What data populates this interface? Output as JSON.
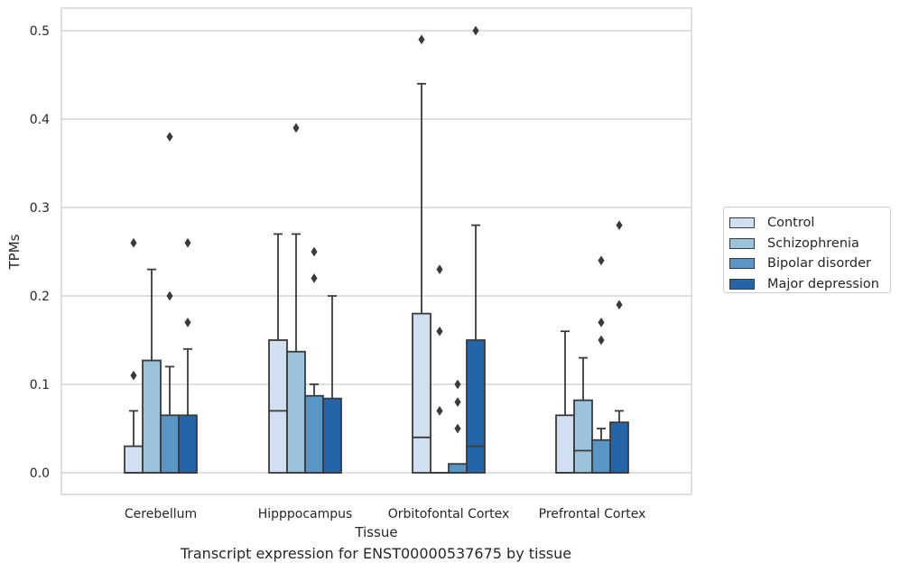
{
  "chart_data": {
    "type": "box",
    "categories": [
      "Cerebellum",
      "Hipppocampus",
      "Orbitofontal Cortex",
      "Prefrontal Cortex"
    ],
    "xlabel": "Tissue",
    "ylabel": "TPMs",
    "ylim": [
      -0.025,
      0.525
    ],
    "yticks": [
      "0.0",
      "0.1",
      "0.2",
      "0.3",
      "0.4",
      "0.5"
    ],
    "grid": true,
    "legend_placement": "right",
    "series": [
      {
        "name": "Control",
        "color": "#d0e0f0",
        "boxes": [
          {
            "whislo": 0.0,
            "q1": 0.0,
            "med": 0.0,
            "q3": 0.03,
            "whishi": 0.07,
            "fliers": [
              0.11,
              0.26
            ]
          },
          {
            "whislo": 0.0,
            "q1": 0.0,
            "med": 0.07,
            "q3": 0.15,
            "whishi": 0.27,
            "fliers": []
          },
          {
            "whislo": 0.0,
            "q1": 0.0,
            "med": 0.04,
            "q3": 0.18,
            "whishi": 0.44,
            "fliers": [
              0.49
            ]
          },
          {
            "whislo": 0.0,
            "q1": 0.0,
            "med": 0.0,
            "q3": 0.065,
            "whishi": 0.16,
            "fliers": []
          }
        ]
      },
      {
        "name": "Schizophrenia",
        "color": "#9bc3db",
        "boxes": [
          {
            "whislo": 0.0,
            "q1": 0.0,
            "med": 0.0,
            "q3": 0.127,
            "whishi": 0.23,
            "fliers": []
          },
          {
            "whislo": 0.0,
            "q1": 0.0,
            "med": 0.0,
            "q3": 0.137,
            "whishi": 0.27,
            "fliers": [
              0.39
            ]
          },
          {
            "whislo": 0.0,
            "q1": 0.0,
            "med": 0.0,
            "q3": 0.0,
            "whishi": 0.0,
            "fliers": [
              0.07,
              0.16,
              0.23
            ]
          },
          {
            "whislo": 0.0,
            "q1": 0.0,
            "med": 0.025,
            "q3": 0.082,
            "whishi": 0.13,
            "fliers": []
          }
        ]
      },
      {
        "name": "Bipolar disorder",
        "color": "#5a96c5",
        "boxes": [
          {
            "whislo": 0.0,
            "q1": 0.0,
            "med": 0.0,
            "q3": 0.065,
            "whishi": 0.12,
            "fliers": [
              0.2,
              0.38
            ]
          },
          {
            "whislo": 0.0,
            "q1": 0.0,
            "med": 0.0,
            "q3": 0.087,
            "whishi": 0.1,
            "fliers": [
              0.22,
              0.25
            ]
          },
          {
            "whislo": 0.0,
            "q1": 0.0,
            "med": 0.0,
            "q3": 0.01,
            "whishi": 0.01,
            "fliers": [
              0.05,
              0.08,
              0.1
            ]
          },
          {
            "whislo": 0.0,
            "q1": 0.0,
            "med": 0.0,
            "q3": 0.037,
            "whishi": 0.05,
            "fliers": [
              0.15,
              0.17,
              0.24
            ]
          }
        ]
      },
      {
        "name": "Major depression",
        "color": "#2465a8",
        "boxes": [
          {
            "whislo": 0.0,
            "q1": 0.0,
            "med": 0.0,
            "q3": 0.065,
            "whishi": 0.14,
            "fliers": [
              0.17,
              0.26
            ]
          },
          {
            "whislo": 0.0,
            "q1": 0.0,
            "med": 0.0,
            "q3": 0.084,
            "whishi": 0.2,
            "fliers": []
          },
          {
            "whislo": 0.0,
            "q1": 0.0,
            "med": 0.03,
            "q3": 0.15,
            "whishi": 0.28,
            "fliers": [
              0.5
            ]
          },
          {
            "whislo": 0.0,
            "q1": 0.0,
            "med": 0.0,
            "q3": 0.057,
            "whishi": 0.07,
            "fliers": [
              0.19,
              0.28
            ]
          }
        ]
      }
    ]
  },
  "caption": "Transcript expression for ENST00000537675 by tissue",
  "colors": {
    "box_edge": "#3a3a3a",
    "grid": "#cccccc",
    "frame": "#cccccc"
  }
}
